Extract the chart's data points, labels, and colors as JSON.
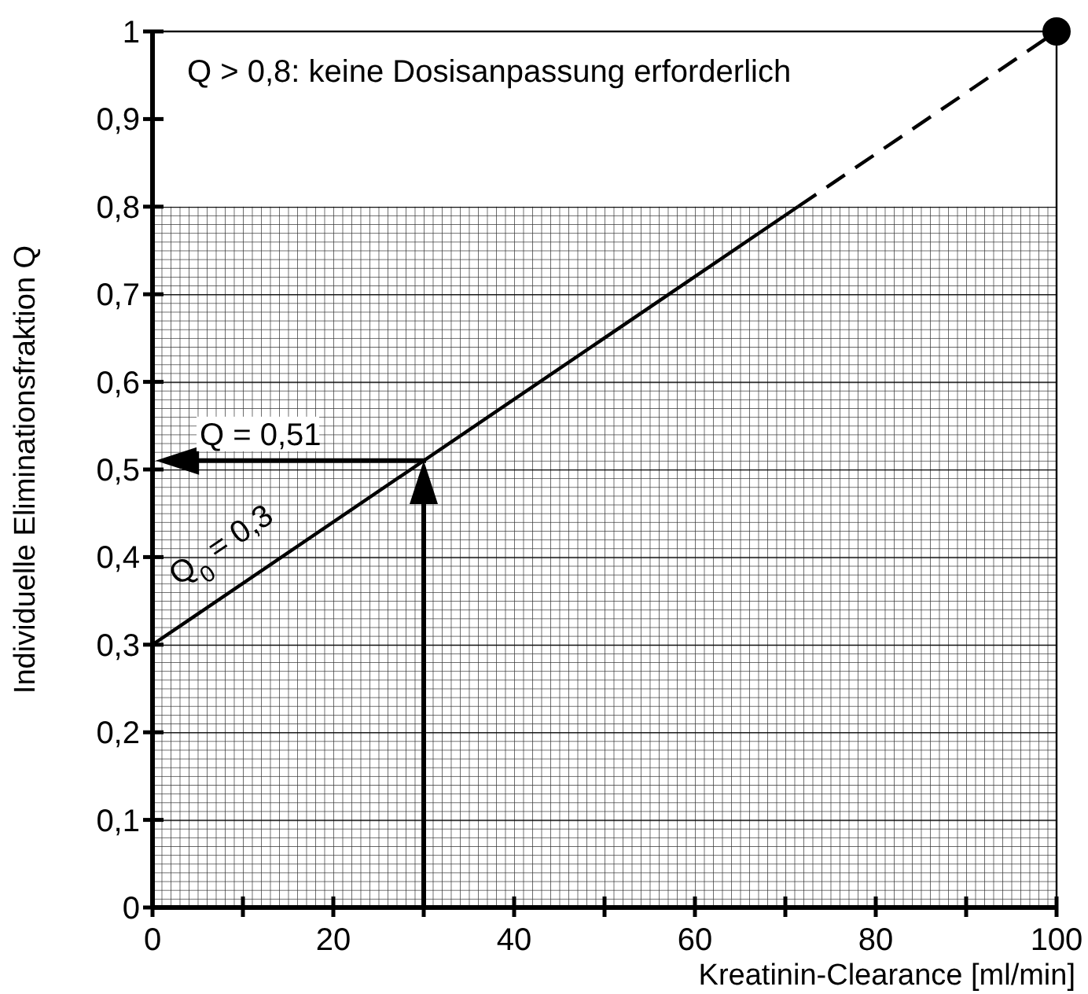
{
  "chart_data": {
    "type": "line",
    "xlabel": "Kreatinin-Clearance [ml/min]",
    "ylabel": "Individuelle Eliminationsfraktion Q",
    "xlim": [
      0,
      100
    ],
    "ylim": [
      0,
      1
    ],
    "xticks": [
      0,
      {
        "value": 10,
        "label": null
      },
      20,
      {
        "value": 30,
        "label": null
      },
      40,
      {
        "value": 50,
        "label": null
      },
      60,
      {
        "value": 70,
        "label": null
      },
      80,
      {
        "value": 90,
        "label": null
      },
      100
    ],
    "yticks": [
      0,
      {
        "value": 0.1,
        "label": "0,1"
      },
      {
        "value": 0.2,
        "label": "0,2"
      },
      {
        "value": 0.3,
        "label": "0,3"
      },
      {
        "value": 0.4,
        "label": "0,4"
      },
      {
        "value": 0.5,
        "label": "0,5"
      },
      {
        "value": 0.6,
        "label": "0,6"
      },
      {
        "value": 0.7,
        "label": "0,7"
      },
      {
        "value": 0.8,
        "label": "0,8"
      },
      {
        "value": 0.9,
        "label": "0,9"
      },
      1
    ],
    "series": [
      {
        "color": "#000000",
        "line_style": "solid",
        "x": [
          0,
          71.4
        ],
        "values": [
          0.3,
          0.8
        ]
      },
      {
        "color": "#000000",
        "line_style": "dashed",
        "x": [
          71.4,
          100
        ],
        "values": [
          0.8,
          1
        ]
      },
      {
        "type": "scatter",
        "color": "#000000",
        "marker": "circle",
        "x": [
          100
        ],
        "values": [
          1
        ]
      }
    ],
    "bands": [
      {
        "axis": "y",
        "from": 0,
        "to": 0.8,
        "color": "#000000"
      }
    ],
    "annotations": [
      "Q > 0,8: keine Dosisanpassung erforderlich",
      {
        "text": "Q = 0,51",
        "x": 30,
        "y": 0.51
      },
      {
        "text": "Q$_{0}$ = 0,3",
        "x": 0,
        "y": 0.3
      }
    ],
    "grid": false
  }
}
